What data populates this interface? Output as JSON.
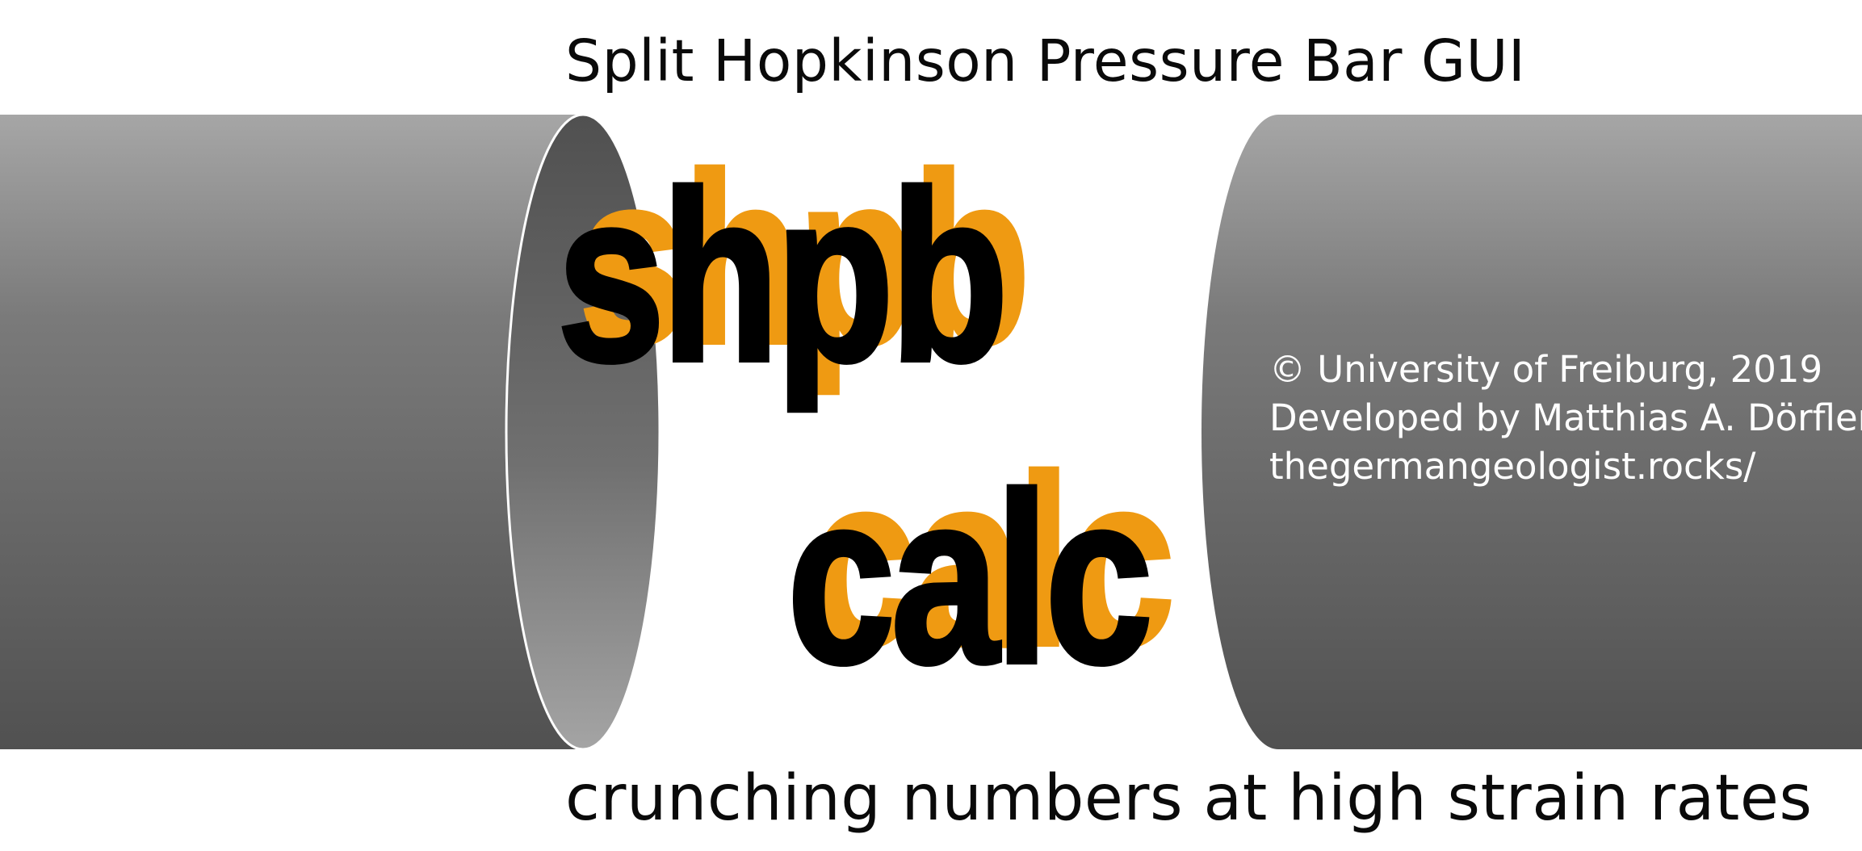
{
  "header": {
    "title": "Split Hopkinson Pressure Bar GUI"
  },
  "logo": {
    "line1": "shpb",
    "line2": "calc"
  },
  "credits": {
    "copyright": "© University of Freiburg, 2019",
    "developer": "Developed by Matthias A. Dörfler",
    "website": "thegermangeologist.rocks/"
  },
  "footer": {
    "tagline": "crunching numbers at high strain rates"
  },
  "colors": {
    "accent_orange": "#ef9a12",
    "bar_gray_light": "#a6a6a6",
    "bar_gray_dark": "#535353",
    "logo_black": "#000000",
    "background": "#ffffff"
  }
}
